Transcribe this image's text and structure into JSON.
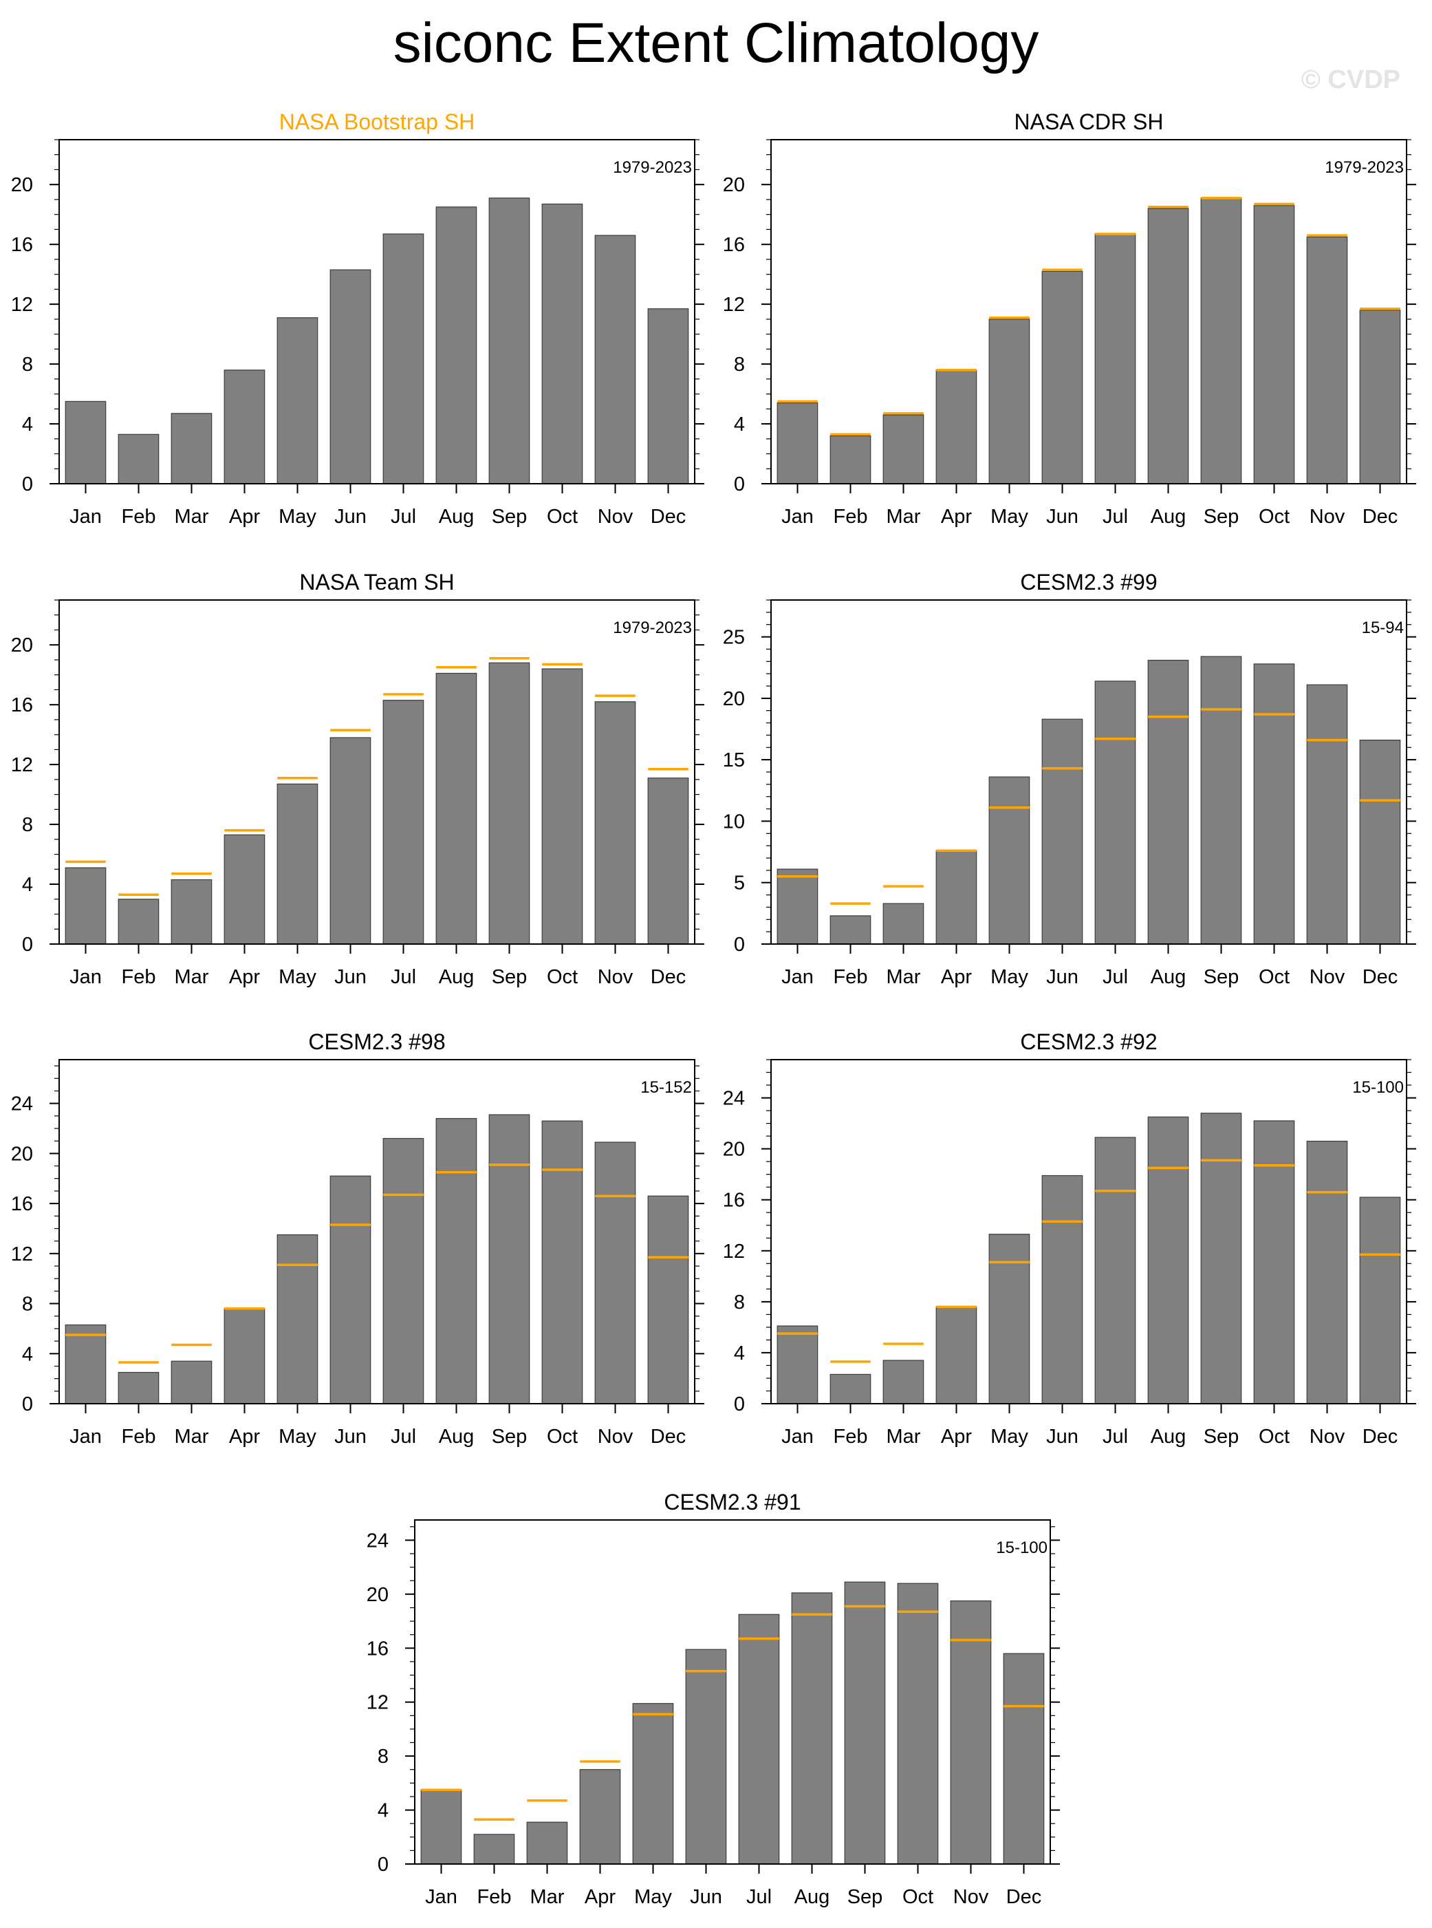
{
  "figure": {
    "title": "siconc Extent Climatology",
    "watermark": "© CVDP"
  },
  "colors": {
    "bar": "#808080",
    "bar_edge": "#3c3c3c",
    "reference_line": "#FFA500",
    "axis": "#000000",
    "highlight_title": "#FFA500"
  },
  "chart_data": [
    {
      "type": "bar",
      "title": "NASA Bootstrap SH",
      "title_color": "#FFA500",
      "period": "1979-2023",
      "categories": [
        "Jan",
        "Feb",
        "Mar",
        "Apr",
        "May",
        "Jun",
        "Jul",
        "Aug",
        "Sep",
        "Oct",
        "Nov",
        "Dec"
      ],
      "values": [
        5.5,
        3.3,
        4.7,
        7.6,
        11.1,
        14.3,
        16.7,
        18.5,
        19.1,
        18.7,
        16.6,
        11.7
      ],
      "reference": null,
      "ylim": [
        0,
        23
      ],
      "yticks": [
        0,
        4,
        8,
        12,
        16,
        20
      ],
      "minor_step": 1
    },
    {
      "type": "bar",
      "title": "NASA CDR SH",
      "title_color": "#000000",
      "period": "1979-2023",
      "categories": [
        "Jan",
        "Feb",
        "Mar",
        "Apr",
        "May",
        "Jun",
        "Jul",
        "Aug",
        "Sep",
        "Oct",
        "Nov",
        "Dec"
      ],
      "values": [
        5.4,
        3.2,
        4.6,
        7.6,
        11.0,
        14.2,
        16.7,
        18.4,
        19.1,
        18.6,
        16.5,
        11.6
      ],
      "reference": [
        5.5,
        3.3,
        4.7,
        7.6,
        11.1,
        14.3,
        16.7,
        18.5,
        19.1,
        18.7,
        16.6,
        11.7
      ],
      "ylim": [
        0,
        23
      ],
      "yticks": [
        0,
        4,
        8,
        12,
        16,
        20
      ],
      "minor_step": 1
    },
    {
      "type": "bar",
      "title": "NASA Team SH",
      "title_color": "#000000",
      "period": "1979-2023",
      "categories": [
        "Jan",
        "Feb",
        "Mar",
        "Apr",
        "May",
        "Jun",
        "Jul",
        "Aug",
        "Sep",
        "Oct",
        "Nov",
        "Dec"
      ],
      "values": [
        5.1,
        3.0,
        4.3,
        7.3,
        10.7,
        13.8,
        16.3,
        18.1,
        18.8,
        18.4,
        16.2,
        11.1
      ],
      "reference": [
        5.5,
        3.3,
        4.7,
        7.6,
        11.1,
        14.3,
        16.7,
        18.5,
        19.1,
        18.7,
        16.6,
        11.7
      ],
      "ylim": [
        0,
        23
      ],
      "yticks": [
        0,
        4,
        8,
        12,
        16,
        20
      ],
      "minor_step": 1
    },
    {
      "type": "bar",
      "title": "CESM2.3 #99",
      "title_color": "#000000",
      "period": "15-94",
      "categories": [
        "Jan",
        "Feb",
        "Mar",
        "Apr",
        "May",
        "Jun",
        "Jul",
        "Aug",
        "Sep",
        "Oct",
        "Nov",
        "Dec"
      ],
      "values": [
        6.1,
        2.3,
        3.3,
        7.6,
        13.6,
        18.3,
        21.4,
        23.1,
        23.4,
        22.8,
        21.1,
        16.6
      ],
      "reference": [
        5.5,
        3.3,
        4.7,
        7.6,
        11.1,
        14.3,
        16.7,
        18.5,
        19.1,
        18.7,
        16.6,
        11.7
      ],
      "ylim": [
        0,
        28
      ],
      "yticks": [
        0,
        5,
        10,
        15,
        20,
        25
      ],
      "minor_step": 1
    },
    {
      "type": "bar",
      "title": "CESM2.3 #98",
      "title_color": "#000000",
      "period": "15-152",
      "categories": [
        "Jan",
        "Feb",
        "Mar",
        "Apr",
        "May",
        "Jun",
        "Jul",
        "Aug",
        "Sep",
        "Oct",
        "Nov",
        "Dec"
      ],
      "values": [
        6.3,
        2.5,
        3.4,
        7.6,
        13.5,
        18.2,
        21.2,
        22.8,
        23.1,
        22.6,
        20.9,
        16.6
      ],
      "reference": [
        5.5,
        3.3,
        4.7,
        7.6,
        11.1,
        14.3,
        16.7,
        18.5,
        19.1,
        18.7,
        16.6,
        11.7
      ],
      "ylim": [
        0,
        27.5
      ],
      "yticks": [
        0,
        4,
        8,
        12,
        16,
        20,
        24
      ],
      "minor_step": 1
    },
    {
      "type": "bar",
      "title": "CESM2.3 #92",
      "title_color": "#000000",
      "period": "15-100",
      "categories": [
        "Jan",
        "Feb",
        "Mar",
        "Apr",
        "May",
        "Jun",
        "Jul",
        "Aug",
        "Sep",
        "Oct",
        "Nov",
        "Dec"
      ],
      "values": [
        6.1,
        2.3,
        3.4,
        7.6,
        13.3,
        17.9,
        20.9,
        22.5,
        22.8,
        22.2,
        20.6,
        16.2
      ],
      "reference": [
        5.5,
        3.3,
        4.7,
        7.6,
        11.1,
        14.3,
        16.7,
        18.5,
        19.1,
        18.7,
        16.6,
        11.7
      ],
      "ylim": [
        0,
        27
      ],
      "yticks": [
        0,
        4,
        8,
        12,
        16,
        20,
        24
      ],
      "minor_step": 1
    },
    {
      "type": "bar",
      "title": "CESM2.3 #91",
      "title_color": "#000000",
      "period": "15-100",
      "categories": [
        "Jan",
        "Feb",
        "Mar",
        "Apr",
        "May",
        "Jun",
        "Jul",
        "Aug",
        "Sep",
        "Oct",
        "Nov",
        "Dec"
      ],
      "values": [
        5.5,
        2.2,
        3.1,
        7.0,
        11.9,
        15.9,
        18.5,
        20.1,
        20.9,
        20.8,
        19.5,
        15.6
      ],
      "reference": [
        5.5,
        3.3,
        4.7,
        7.6,
        11.1,
        14.3,
        16.7,
        18.5,
        19.1,
        18.7,
        16.6,
        11.7
      ],
      "ylim": [
        0,
        25.5
      ],
      "yticks": [
        0,
        4,
        8,
        12,
        16,
        20,
        24
      ],
      "minor_step": 1
    }
  ]
}
